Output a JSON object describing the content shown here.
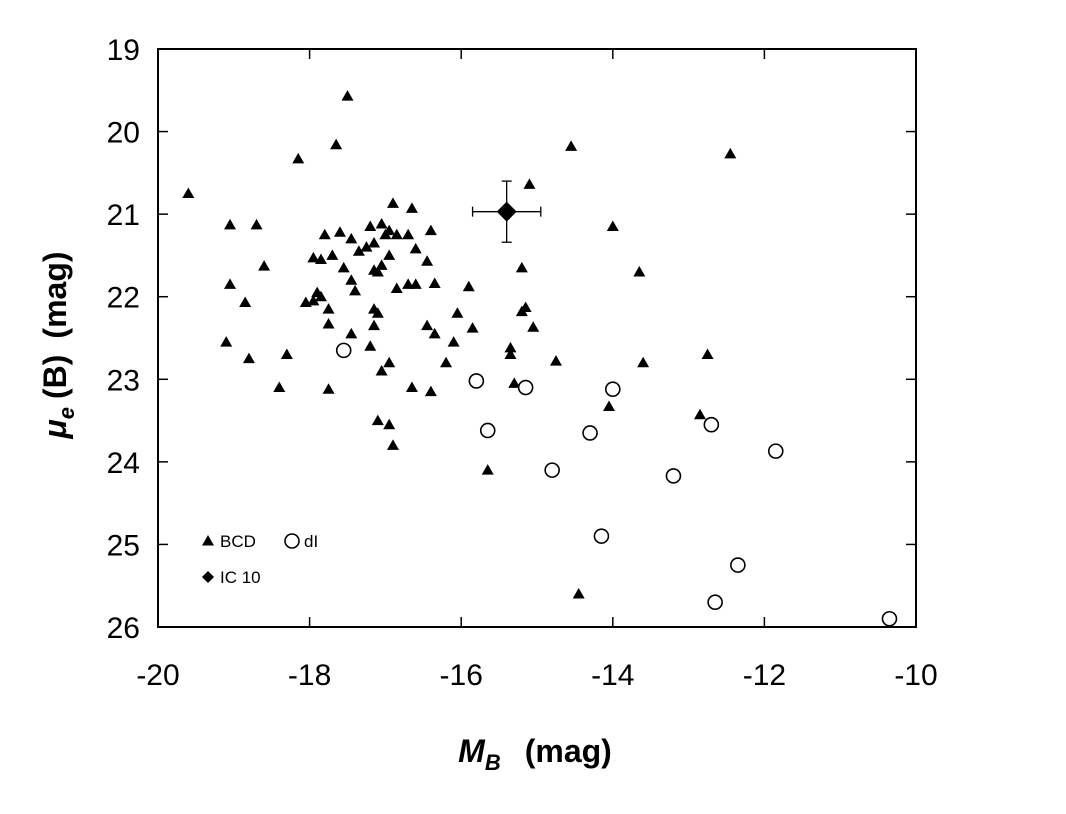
{
  "chart_data": {
    "type": "scatter",
    "xlim": [
      -20,
      -10
    ],
    "ylim": [
      26,
      19
    ],
    "y_inverted": true,
    "xticks": [
      -20,
      -18,
      -16,
      -14,
      -12,
      -10
    ],
    "yticks": [
      19,
      20,
      21,
      22,
      23,
      24,
      25,
      26
    ],
    "xtick_labels": [
      "-20",
      "-18",
      "-16",
      "-14",
      "-12",
      "-10"
    ],
    "ytick_labels": [
      "19",
      "20",
      "21",
      "22",
      "23",
      "24",
      "25",
      "26"
    ],
    "xlabel": {
      "main": "M",
      "sub": "B",
      "unit": "(mag)"
    },
    "ylabel": {
      "main": "μ",
      "sub": "e",
      "mid": "(B)",
      "unit": "(mag)"
    },
    "grid": false,
    "legend_position": "bottom-left",
    "series": [
      {
        "name": "BCD",
        "marker": "triangle",
        "points": [
          [
            -19.6,
            20.75
          ],
          [
            -17.5,
            19.57
          ],
          [
            -17.65,
            20.16
          ],
          [
            -18.15,
            20.33
          ],
          [
            -14.55,
            20.18
          ],
          [
            -12.45,
            20.27
          ],
          [
            -15.1,
            20.64
          ],
          [
            -19.05,
            21.13
          ],
          [
            -18.7,
            21.13
          ],
          [
            -18.6,
            21.63
          ],
          [
            -19.05,
            21.85
          ],
          [
            -18.85,
            22.07
          ],
          [
            -19.1,
            22.55
          ],
          [
            -18.8,
            22.75
          ],
          [
            -18.3,
            22.7
          ],
          [
            -18.4,
            23.1
          ],
          [
            -17.95,
            21.53
          ],
          [
            -17.8,
            21.25
          ],
          [
            -17.85,
            21.55
          ],
          [
            -17.6,
            21.22
          ],
          [
            -17.45,
            21.3
          ],
          [
            -17.2,
            21.15
          ],
          [
            -17.05,
            21.12
          ],
          [
            -16.9,
            20.87
          ],
          [
            -16.95,
            21.2
          ],
          [
            -16.85,
            21.25
          ],
          [
            -16.7,
            21.25
          ],
          [
            -16.65,
            20.93
          ],
          [
            -16.4,
            21.2
          ],
          [
            -16.6,
            21.42
          ],
          [
            -16.45,
            21.57
          ],
          [
            -16.35,
            21.84
          ],
          [
            -17.7,
            21.5
          ],
          [
            -17.55,
            21.65
          ],
          [
            -17.35,
            21.45
          ],
          [
            -17.25,
            21.4
          ],
          [
            -17.15,
            21.35
          ],
          [
            -17.0,
            21.25
          ],
          [
            -17.05,
            21.62
          ],
          [
            -17.1,
            21.7
          ],
          [
            -17.15,
            21.68
          ],
          [
            -16.95,
            21.5
          ],
          [
            -16.85,
            21.9
          ],
          [
            -16.7,
            21.85
          ],
          [
            -16.6,
            21.85
          ],
          [
            -17.9,
            21.95
          ],
          [
            -17.85,
            22.0
          ],
          [
            -17.95,
            22.05
          ],
          [
            -18.05,
            22.07
          ],
          [
            -17.45,
            21.8
          ],
          [
            -17.4,
            21.93
          ],
          [
            -17.15,
            22.15
          ],
          [
            -17.1,
            22.2
          ],
          [
            -17.75,
            22.15
          ],
          [
            -17.75,
            22.33
          ],
          [
            -17.45,
            22.45
          ],
          [
            -17.15,
            22.35
          ],
          [
            -17.2,
            22.6
          ],
          [
            -16.95,
            22.8
          ],
          [
            -17.05,
            22.9
          ],
          [
            -16.65,
            23.1
          ],
          [
            -16.4,
            23.15
          ],
          [
            -16.45,
            22.35
          ],
          [
            -16.35,
            22.45
          ],
          [
            -16.2,
            22.8
          ],
          [
            -16.1,
            22.55
          ],
          [
            -16.05,
            22.2
          ],
          [
            -15.9,
            21.88
          ],
          [
            -15.85,
            22.38
          ],
          [
            -15.2,
            21.65
          ],
          [
            -15.15,
            22.13
          ],
          [
            -15.2,
            22.18
          ],
          [
            -15.05,
            22.37
          ],
          [
            -15.35,
            22.62
          ],
          [
            -15.35,
            22.7
          ],
          [
            -15.3,
            23.05
          ],
          [
            -14.75,
            22.78
          ],
          [
            -14.0,
            21.15
          ],
          [
            -13.65,
            21.7
          ],
          [
            -13.6,
            22.8
          ],
          [
            -12.75,
            22.7
          ],
          [
            -12.85,
            23.43
          ],
          [
            -14.05,
            23.33
          ],
          [
            -17.75,
            23.12
          ],
          [
            -17.1,
            23.5
          ],
          [
            -16.95,
            23.55
          ],
          [
            -16.9,
            23.8
          ],
          [
            -15.65,
            24.1
          ],
          [
            -14.45,
            25.6
          ]
        ]
      },
      {
        "name": "dI",
        "marker": "circle",
        "points": [
          [
            -17.55,
            22.65
          ],
          [
            -15.8,
            23.02
          ],
          [
            -15.15,
            23.1
          ],
          [
            -14.0,
            23.12
          ],
          [
            -15.65,
            23.62
          ],
          [
            -14.3,
            23.65
          ],
          [
            -12.7,
            23.55
          ],
          [
            -14.8,
            24.1
          ],
          [
            -13.2,
            24.17
          ],
          [
            -11.85,
            23.87
          ],
          [
            -14.15,
            24.9
          ],
          [
            -12.35,
            25.25
          ],
          [
            -12.65,
            25.7
          ],
          [
            -10.35,
            25.9
          ]
        ]
      },
      {
        "name": "IC 10",
        "marker": "diamond",
        "points": [
          [
            -15.4,
            20.97
          ]
        ],
        "xerr": 0.45,
        "yerr": 0.37
      }
    ],
    "legend": [
      {
        "label": "BCD",
        "marker": "triangle",
        "row": 0,
        "col": 0
      },
      {
        "label": "dI",
        "marker": "circle",
        "row": 0,
        "col": 1
      },
      {
        "label": "IC 10",
        "marker": "diamond",
        "row": 1,
        "col": 0
      }
    ]
  }
}
